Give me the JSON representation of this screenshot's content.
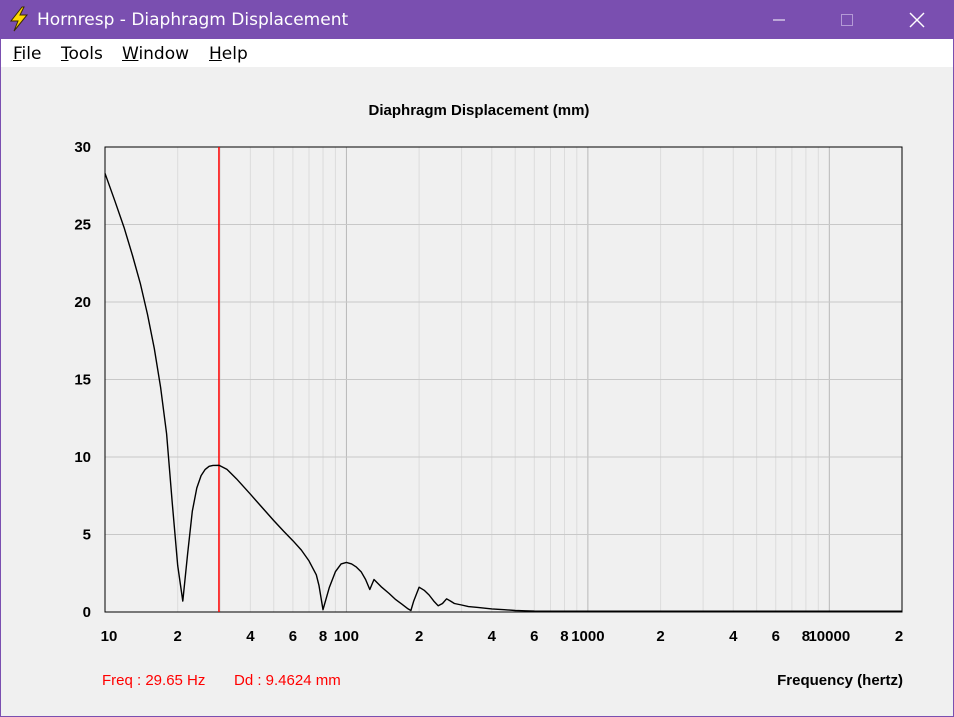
{
  "window": {
    "title": "Hornresp - Diaphragm Displacement",
    "minimize_glyph": "—",
    "maximize_glyph": "☐",
    "close_glyph": "✕",
    "titlebar_color": "#7a4fb0"
  },
  "menu": [
    {
      "first": "F",
      "rest": "ile"
    },
    {
      "first": "T",
      "rest": "ools"
    },
    {
      "first": "W",
      "rest": "indow"
    },
    {
      "first": "H",
      "rest": "elp"
    }
  ],
  "chart_data": {
    "type": "line",
    "title": "Diaphragm Displacement (mm)",
    "xlabel": "Frequency (hertz)",
    "ylabel": "",
    "x_scale": "log",
    "xlim": [
      10,
      20000
    ],
    "ylim": [
      0,
      30
    ],
    "y_ticks": [
      0,
      5,
      10,
      15,
      20,
      25,
      30
    ],
    "x_ticks": [
      {
        "v": 10,
        "label": "10"
      },
      {
        "v": 20,
        "label": "2"
      },
      {
        "v": 40,
        "label": "4"
      },
      {
        "v": 60,
        "label": "6"
      },
      {
        "v": 80,
        "label": "8"
      },
      {
        "v": 100,
        "label": "100"
      },
      {
        "v": 200,
        "label": "2"
      },
      {
        "v": 400,
        "label": "4"
      },
      {
        "v": 600,
        "label": "6"
      },
      {
        "v": 800,
        "label": "8"
      },
      {
        "v": 1000,
        "label": "1000"
      },
      {
        "v": 2000,
        "label": "2"
      },
      {
        "v": 4000,
        "label": "4"
      },
      {
        "v": 6000,
        "label": "6"
      },
      {
        "v": 8000,
        "label": "8"
      },
      {
        "v": 10000,
        "label": "10000"
      },
      {
        "v": 20000,
        "label": "2"
      }
    ],
    "grid": true,
    "series": [
      {
        "color": "#000000",
        "x": [
          10,
          11,
          12,
          13,
          14,
          15,
          16,
          17,
          18,
          19,
          20,
          21,
          22,
          23,
          24,
          25,
          26,
          27,
          28,
          29.65,
          32,
          35,
          40,
          45,
          50,
          55,
          60,
          65,
          70,
          75,
          77,
          80,
          85,
          90,
          95,
          100,
          105,
          110,
          115,
          120,
          125,
          130,
          140,
          150,
          160,
          170,
          180,
          185,
          190,
          200,
          210,
          220,
          230,
          240,
          250,
          260,
          270,
          280,
          300,
          320,
          350,
          400,
          450,
          500,
          550,
          600,
          800,
          1000,
          2000,
          5000,
          10000,
          20000
        ],
        "y": [
          28.3,
          26.5,
          24.8,
          23.0,
          21.2,
          19.2,
          17.0,
          14.5,
          11.5,
          7.0,
          3.0,
          0.7,
          3.8,
          6.5,
          8.0,
          8.8,
          9.2,
          9.4,
          9.46,
          9.4624,
          9.2,
          8.6,
          7.6,
          6.7,
          5.9,
          5.2,
          4.6,
          4.0,
          3.3,
          2.4,
          1.7,
          0.15,
          1.6,
          2.6,
          3.1,
          3.2,
          3.1,
          2.9,
          2.6,
          2.1,
          1.45,
          2.1,
          1.6,
          1.2,
          0.8,
          0.5,
          0.2,
          0.1,
          0.7,
          1.6,
          1.4,
          1.1,
          0.7,
          0.4,
          0.55,
          0.85,
          0.7,
          0.55,
          0.45,
          0.35,
          0.3,
          0.2,
          0.15,
          0.1,
          0.08,
          0.06,
          0.05,
          0.05,
          0.05,
          0.05,
          0.05,
          0.05
        ]
      }
    ],
    "marker": {
      "freq": 29.65,
      "color": "#ff0000"
    },
    "readout": {
      "freq": "Freq : 29.65 Hz",
      "dd": "Dd : 9.4624 mm",
      "color": "#ff0000"
    }
  }
}
